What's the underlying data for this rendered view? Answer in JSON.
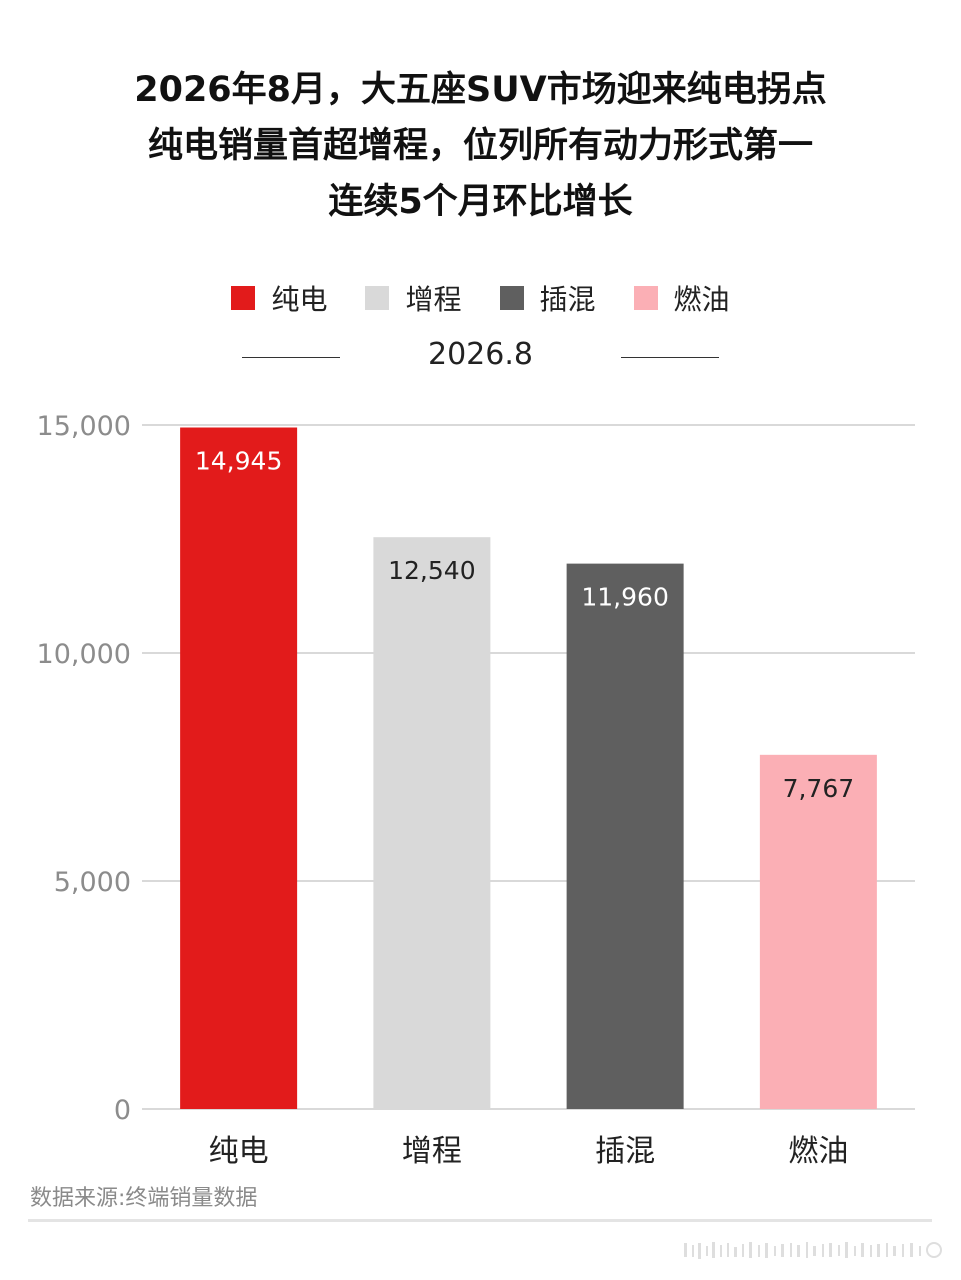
{
  "title_lines": [
    "2026年8月，大五座SUV市场迎来纯电拐点",
    "纯电销量首超增程，位列所有动力形式第一",
    "连续5个月环比增长"
  ],
  "period_label": "2026.8",
  "source": "数据来源:终端销量数据",
  "colors": {
    "纯电": "#e21b1b",
    "增程": "#d9d9d9",
    "插混": "#5f5f5f",
    "燃油": "#fbafb5",
    "label_light": "#ffffff",
    "label_dark": "#222222",
    "grid": "#d9d9d9",
    "tick": "#8c8c8c"
  },
  "chart_data": {
    "type": "bar",
    "categories": [
      "纯电",
      "增程",
      "插混",
      "燃油"
    ],
    "values": [
      14945,
      12540,
      11960,
      7767
    ],
    "data_labels": [
      "14,945",
      "12,540",
      "11,960",
      "7,767"
    ],
    "legend": [
      "纯电",
      "增程",
      "插混",
      "燃油"
    ],
    "legend_position": "top-center",
    "ylim": [
      0,
      15000
    ],
    "yticks": [
      0,
      5000,
      10000,
      15000
    ],
    "ytick_labels": [
      "0",
      "5,000",
      "10,000",
      "15,000"
    ],
    "grid": true,
    "xlabel": "",
    "ylabel": ""
  }
}
